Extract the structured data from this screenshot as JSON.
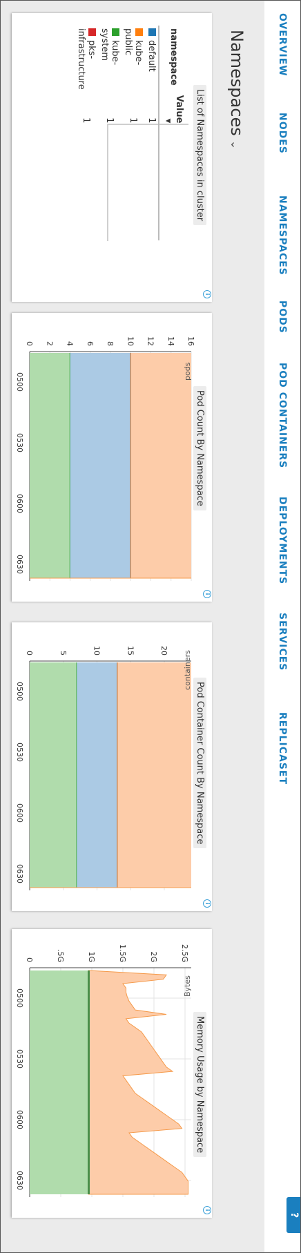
{
  "nav": {
    "items": [
      "OVERVIEW",
      "NODES",
      "NAMESPACES",
      "PODS",
      "POD CONTAINERS",
      "DEPLOYMENTS",
      "SERVICES",
      "REPLICASET"
    ],
    "help_label": "?"
  },
  "page": {
    "title": "Namespaces",
    "chevron": "⌄"
  },
  "namespaces_table": {
    "title": "List of Namespaces in cluster",
    "columns": [
      "namespace",
      "Value"
    ],
    "sort_indicator": "▼",
    "rows": [
      {
        "namespace": "default",
        "value": "1",
        "color": "#1f77b4"
      },
      {
        "namespace": "kube-public",
        "value": "1",
        "color": "#ff7f0e"
      },
      {
        "namespace": "kube-system",
        "value": "1",
        "color": "#2ca02c"
      },
      {
        "namespace": "pks-infrastructure",
        "value": "1",
        "color": "#d62728"
      }
    ]
  },
  "info_symbol": "i",
  "chart_data": [
    {
      "type": "area",
      "title": "Pod Count By Namespace",
      "ylabel": "pods",
      "ylim": [
        0,
        16
      ],
      "yticks": [
        "0",
        "2",
        "4",
        "6",
        "8",
        "10",
        "12",
        "14",
        "16"
      ],
      "xticks": [
        "0500",
        "0530",
        "0600",
        "0630"
      ],
      "stacked": true,
      "series": [
        {
          "name": "kube-system",
          "color": "#2ca02c",
          "fill": "#b0dcac",
          "values": [
            4,
            4
          ]
        },
        {
          "name": "default",
          "color": "#1f77b4",
          "fill": "#abcae4",
          "values": [
            6,
            6
          ]
        },
        {
          "name": "kube-public",
          "color": "#ff7f0e",
          "fill": "#fdcca9",
          "values": [
            0,
            0
          ]
        },
        {
          "name": "pks-infrastructure",
          "color": "#d62728",
          "fill": "#fdcca9",
          "values": [
            0,
            0
          ]
        }
      ],
      "top_value": 16
    },
    {
      "type": "area",
      "title": "Pod Container Count By Namespace",
      "ylabel": "containers",
      "ylim": [
        0,
        24
      ],
      "yticks": [
        "0",
        "5",
        "10",
        "15",
        "20"
      ],
      "xticks": [
        "0500",
        "0530",
        "0600",
        "0630"
      ],
      "stacked": true,
      "series": [
        {
          "name": "kube-system",
          "color": "#2ca02c",
          "fill": "#b0dcac",
          "values": [
            7,
            7
          ]
        },
        {
          "name": "default",
          "color": "#1f77b4",
          "fill": "#abcae4",
          "values": [
            6,
            6
          ]
        },
        {
          "name": "kube-public",
          "color": "#ff7f0e",
          "fill": "#fdcca9",
          "values": [
            0,
            0
          ]
        }
      ],
      "top_value": 24
    },
    {
      "type": "area",
      "title": "Memory Usage by Namespace",
      "ylabel": "Bytes",
      "ylim": [
        0,
        2.6
      ],
      "yticks": [
        "0",
        ".5G",
        "1G",
        "1.5G",
        "2G",
        "2.5G"
      ],
      "xticks": [
        "0500",
        "0530",
        "0600",
        "0630"
      ],
      "stacked": true,
      "green_level": 0.95,
      "total_profile": [
        0.95,
        2.2,
        2.15,
        1.5,
        1.55,
        1.55,
        1.57,
        1.6,
        1.65,
        1.7,
        2.2,
        1.55,
        1.6,
        1.7,
        1.8,
        1.85,
        1.9,
        1.95,
        2.0,
        2.05,
        2.1,
        2.15,
        2.2,
        2.3,
        1.5,
        1.55,
        1.6,
        1.65,
        1.7,
        1.8,
        1.9,
        2.0,
        2.1,
        2.2,
        2.3,
        2.4,
        2.45,
        1.6,
        1.65,
        1.75,
        1.85,
        1.95,
        2.05,
        2.15,
        2.25,
        2.35,
        2.45,
        2.5,
        2.55,
        2.55,
        2.55,
        2.55
      ]
    }
  ]
}
